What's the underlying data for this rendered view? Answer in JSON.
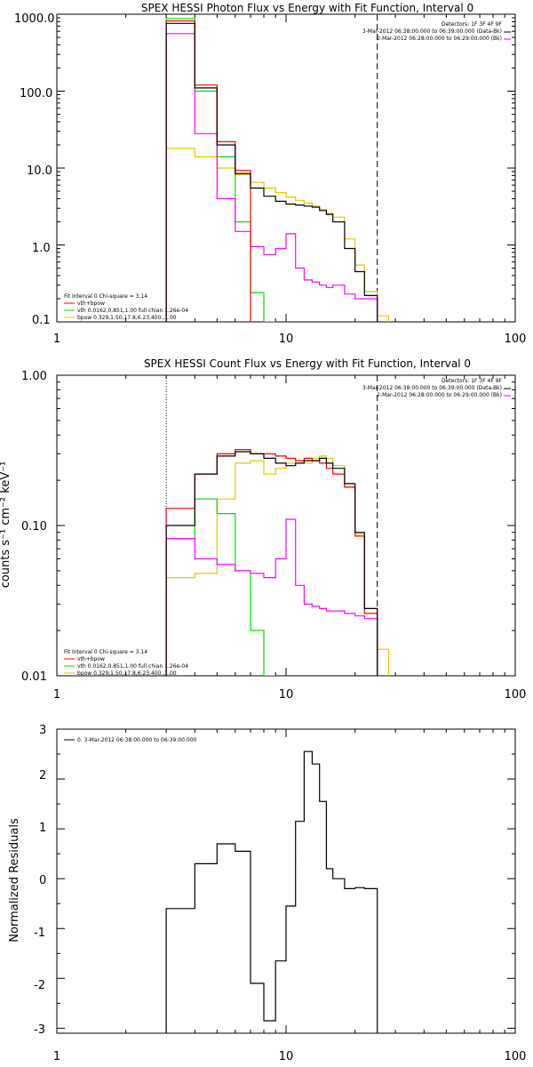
{
  "colors": {
    "total": "#ff0000",
    "vth": "#00dd00",
    "bpow": "#e6c800",
    "background": "#ff00ff",
    "data": "#000000"
  },
  "chart_data": [
    {
      "type": "line",
      "title": "SPEX HESSI Photon Flux vs Energy with Fit Function, Interval 0",
      "xlabel": "",
      "ylabel": "",
      "xscale": "log",
      "yscale": "log",
      "xlim": [
        1,
        100
      ],
      "ylim": [
        0.1,
        1000
      ],
      "xticks": [
        "1",
        "10",
        "100"
      ],
      "yticks": [
        "0.1",
        "1.0",
        "10.0",
        "100.0",
        "1000.0"
      ],
      "legend_header": [
        "Detectors: 1F 3F 4F 9F",
        "3-Mar-2012 06:38:00.000 to 06:39:00.000 (Data-Bk)",
        "2-Mar-2012 06:28:00.000 to 06:29:00.000 (Bk)"
      ],
      "fit_legend": [
        "Fit Interval 0   Chi-square = 3.14",
        "vth+bpow",
        "vth 0.0162,0.851,1.00  full chian 1.26e-04",
        "bpow 0.329,1.50,17.8,6.23,400.,1.00"
      ],
      "vlines": [
        {
          "x": 3,
          "style": "dotted"
        },
        {
          "x": 25,
          "style": "dashed"
        }
      ],
      "series": [
        {
          "role": "data",
          "edges": [
            3,
            4,
            5,
            6,
            7,
            8,
            9,
            10,
            11,
            12,
            13,
            14,
            15,
            16,
            18,
            20,
            22,
            25
          ],
          "values": [
            760,
            110,
            20,
            8.5,
            5.5,
            4.3,
            3.7,
            3.4,
            3.3,
            3.2,
            3.1,
            2.8,
            2.5,
            2.0,
            0.9,
            0.45,
            0.22
          ]
        },
        {
          "role": "total",
          "edges": [
            3,
            4,
            5,
            6,
            7
          ],
          "values": [
            820,
            120,
            22,
            9.3
          ]
        },
        {
          "role": "vth",
          "edges": [
            3,
            4,
            5,
            6,
            7,
            8,
            9
          ],
          "values": [
            880,
            100,
            14,
            2.0,
            0.24,
            0.1
          ]
        },
        {
          "role": "bpow",
          "edges": [
            3,
            4,
            5,
            6,
            7,
            8,
            9,
            10,
            11,
            12,
            13,
            14,
            15,
            16,
            18,
            20,
            22,
            25,
            28
          ],
          "values": [
            18,
            14,
            10,
            8.2,
            6.5,
            5.5,
            4.8,
            4.2,
            3.8,
            3.5,
            3.2,
            2.9,
            2.6,
            2.3,
            1.2,
            0.55,
            0.25,
            0.12
          ]
        },
        {
          "role": "background",
          "edges": [
            3,
            4,
            5,
            6,
            7,
            8,
            9,
            10,
            11,
            12,
            13,
            14,
            15,
            16,
            18,
            20,
            22,
            25
          ],
          "values": [
            560,
            28,
            4.0,
            1.5,
            0.95,
            0.75,
            0.9,
            1.4,
            0.5,
            0.35,
            0.33,
            0.3,
            0.28,
            0.3,
            0.23,
            0.2,
            0.2
          ]
        }
      ]
    },
    {
      "type": "line",
      "title": "SPEX HESSI Count Flux vs Energy with Fit Function, Interval 0",
      "xlabel": "",
      "ylabel": "counts s⁻¹ cm⁻² keV⁻¹",
      "xscale": "log",
      "yscale": "log",
      "xlim": [
        1,
        100
      ],
      "ylim": [
        0.01,
        1
      ],
      "xticks": [
        "1",
        "10",
        "100"
      ],
      "yticks": [
        "0.01",
        "0.10",
        "1.00"
      ],
      "legend_header": [
        "Detectors: 1F 3F 4F 9F",
        "3-Mar-2012 06:38:00.000 to 06:39:00.000 (Data-Bk)",
        "2-Mar-2012 06:28:00.000 to 06:29:00.000 (Bk)"
      ],
      "fit_legend": [
        "Fit Interval 0   Chi-square = 3.14",
        "vth+bpow",
        "vth 0.0162,0.851,1.00  full chian 1.26e-04",
        "bpow 0.329,1.50,17.8,6.23,400.,1.00"
      ],
      "vlines": [
        {
          "x": 3,
          "style": "dotted"
        },
        {
          "x": 25,
          "style": "dashed"
        }
      ],
      "series": [
        {
          "role": "data",
          "edges": [
            3,
            4,
            5,
            6,
            7,
            8,
            9,
            10,
            11,
            12,
            13,
            14,
            15,
            16,
            18,
            20,
            22,
            25
          ],
          "values": [
            0.1,
            0.22,
            0.29,
            0.31,
            0.3,
            0.28,
            0.26,
            0.25,
            0.26,
            0.27,
            0.27,
            0.28,
            0.26,
            0.24,
            0.19,
            0.09,
            0.028
          ]
        },
        {
          "role": "total",
          "edges": [
            3,
            4,
            5,
            6,
            7,
            8,
            9,
            10,
            11,
            12,
            13,
            14,
            15,
            16,
            18,
            20,
            22,
            25
          ],
          "values": [
            0.13,
            0.22,
            0.3,
            0.32,
            0.3,
            0.3,
            0.29,
            0.28,
            0.27,
            0.28,
            0.27,
            0.26,
            0.24,
            0.22,
            0.18,
            0.085,
            0.026
          ]
        },
        {
          "role": "vth",
          "edges": [
            3,
            4,
            5,
            6,
            7,
            8,
            9
          ],
          "values": [
            0.082,
            0.15,
            0.12,
            0.05,
            0.02,
            0.01
          ]
        },
        {
          "role": "bpow",
          "edges": [
            3,
            4,
            5,
            6,
            7,
            8,
            9,
            10,
            11,
            12,
            13,
            14,
            15,
            16,
            18,
            20,
            22,
            25,
            28
          ],
          "values": [
            0.045,
            0.048,
            0.15,
            0.26,
            0.27,
            0.22,
            0.24,
            0.26,
            0.27,
            0.26,
            0.28,
            0.29,
            0.28,
            0.25,
            0.18,
            0.088,
            0.028,
            0.015
          ]
        },
        {
          "role": "background",
          "edges": [
            3,
            4,
            5,
            6,
            7,
            8,
            9,
            10,
            11,
            12,
            13,
            14,
            15,
            16,
            18,
            20,
            22,
            25
          ],
          "values": [
            0.082,
            0.06,
            0.055,
            0.05,
            0.048,
            0.045,
            0.06,
            0.11,
            0.04,
            0.03,
            0.029,
            0.028,
            0.027,
            0.027,
            0.026,
            0.025,
            0.024
          ]
        }
      ]
    },
    {
      "type": "line",
      "title": "",
      "xlabel": "",
      "ylabel": "Normalized Residuals",
      "xscale": "log",
      "yscale": "linear",
      "xlim": [
        1,
        100
      ],
      "ylim": [
        -3.1,
        3
      ],
      "xticks": [
        "1",
        "10",
        "100"
      ],
      "yticks": [
        "-3",
        "-2",
        "-1",
        "0",
        "1",
        "2",
        "3"
      ],
      "legend": [
        "0. 3-Mar-2012 06:38:00.000 to 06:39:00.000"
      ],
      "series": [
        {
          "role": "data",
          "edges": [
            3,
            4,
            5,
            6,
            7,
            8,
            9,
            10,
            11,
            12,
            13,
            14,
            15,
            16,
            18,
            20,
            22,
            25
          ],
          "values": [
            -0.6,
            0.3,
            0.7,
            0.55,
            -2.1,
            -2.85,
            -1.65,
            -0.55,
            1.15,
            2.55,
            2.3,
            1.55,
            0.2,
            0.0,
            -0.2,
            -0.18,
            -0.2
          ],
          "drop_to_bottom": true
        }
      ]
    }
  ]
}
